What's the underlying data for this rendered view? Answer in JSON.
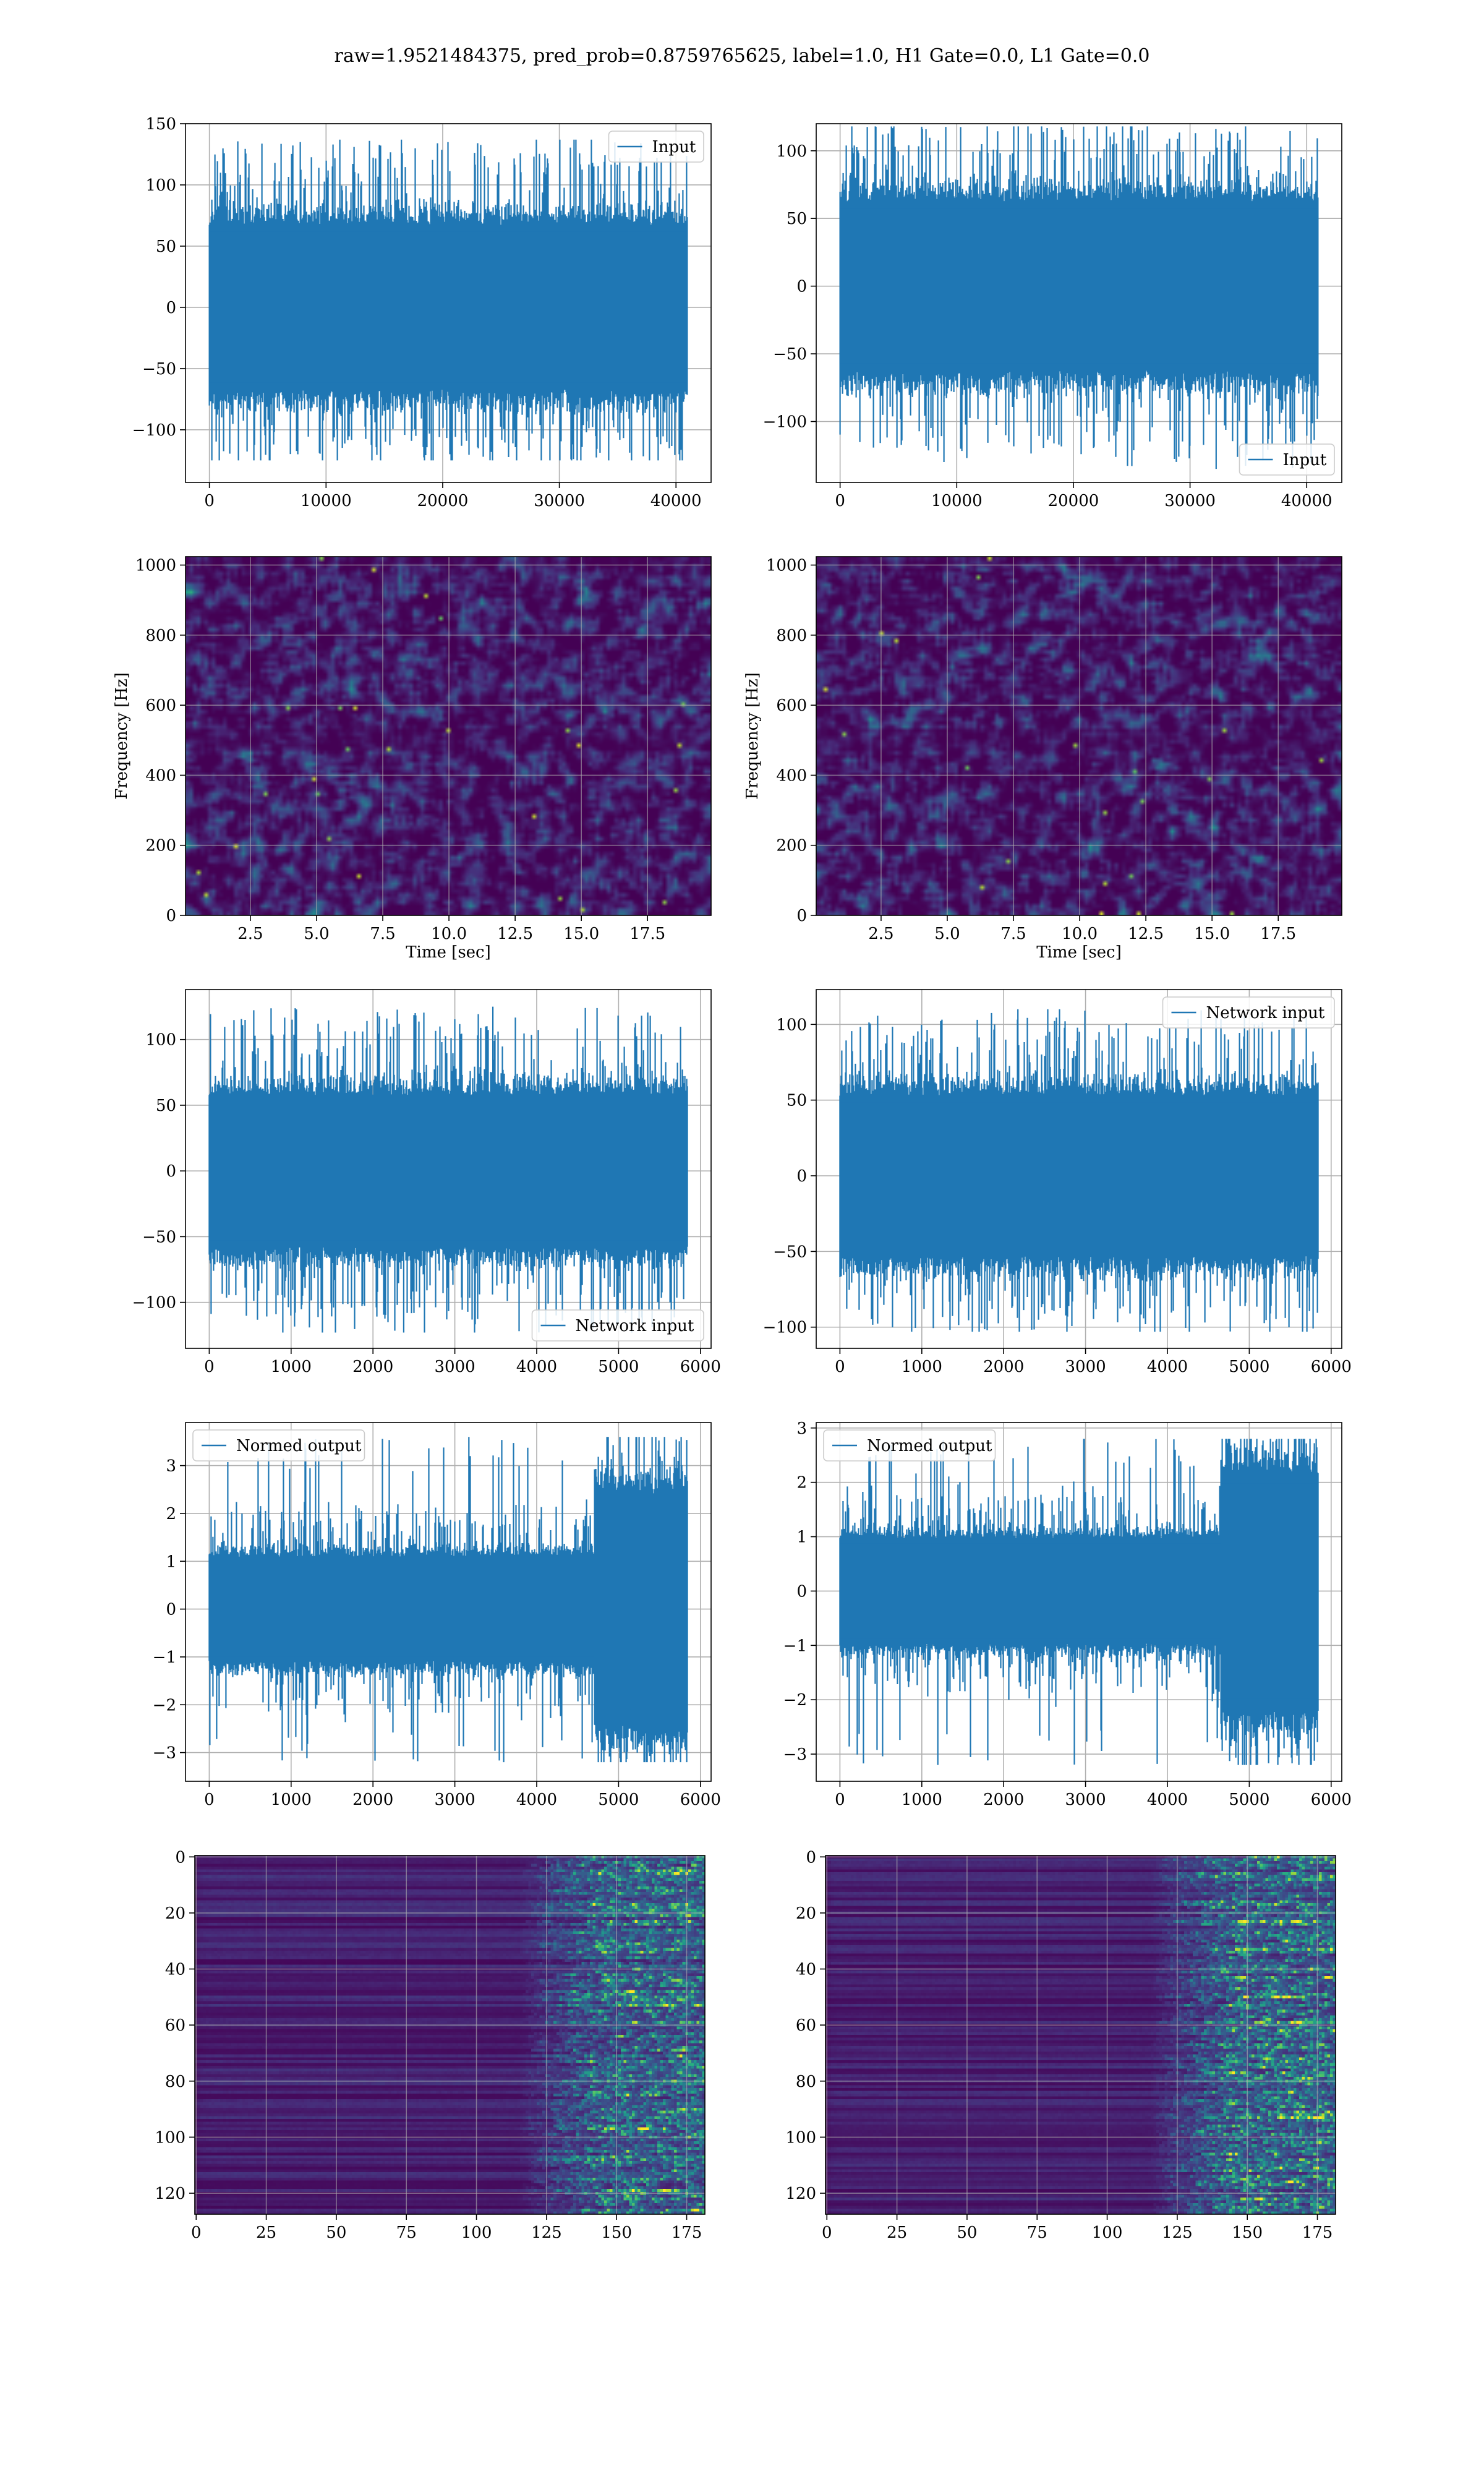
{
  "figure": {
    "title": "raw=1.9521484375, pred_prob=0.8759765625, label=1.0, H1 Gate=0.0, L1 Gate=0.0"
  },
  "colors": {
    "series": "#1f77b4",
    "grid": "#b0b0b0",
    "viridis_low": "#440154",
    "viridis_mid": "#21918c",
    "viridis_high": "#fde725"
  },
  "chart_data": [
    {
      "id": "h1-input",
      "type": "line",
      "row": 0,
      "col": 0,
      "series": [
        {
          "name": "Input",
          "n_samples": 40960,
          "amplitude": 28,
          "peak_min": -125,
          "peak_max": 137
        }
      ],
      "xlim": [
        -2048,
        43008
      ],
      "ylim": [
        -143,
        150
      ],
      "xticks": [
        0,
        10000,
        20000,
        30000,
        40000
      ],
      "xtick_labels": [
        "0",
        "10000",
        "20000",
        "30000",
        "40000"
      ],
      "yticks": [
        -100,
        -50,
        0,
        50,
        100,
        150
      ],
      "ytick_labels": [
        "−100",
        "−50",
        "0",
        "50",
        "100",
        "150"
      ],
      "legend": {
        "label": "Input",
        "loc": "upper right"
      },
      "grid": true
    },
    {
      "id": "l1-input",
      "type": "line",
      "row": 0,
      "col": 1,
      "series": [
        {
          "name": "Input",
          "n_samples": 40960,
          "amplitude": 26,
          "peak_min": -135,
          "peak_max": 118
        }
      ],
      "xlim": [
        -2048,
        43008
      ],
      "ylim": [
        -145,
        120
      ],
      "xticks": [
        0,
        10000,
        20000,
        30000,
        40000
      ],
      "xtick_labels": [
        "0",
        "10000",
        "20000",
        "30000",
        "40000"
      ],
      "yticks": [
        -100,
        -50,
        0,
        50,
        100
      ],
      "ytick_labels": [
        "−100",
        "−50",
        "0",
        "50",
        "100"
      ],
      "legend": {
        "label": "Input",
        "loc": "lower right"
      },
      "grid": true
    },
    {
      "id": "h1-spectrogram",
      "type": "heatmap",
      "row": 1,
      "col": 0,
      "xlim": [
        0.05,
        19.9
      ],
      "ylim": [
        0,
        1024
      ],
      "xticks": [
        2.5,
        5,
        7.5,
        10,
        12.5,
        15,
        17.5
      ],
      "xtick_labels": [
        "2.5",
        "5.0",
        "7.5",
        "10.0",
        "12.5",
        "15.0",
        "17.5"
      ],
      "yticks": [
        0,
        200,
        400,
        600,
        800,
        1000
      ],
      "ytick_labels": [
        "0",
        "200",
        "400",
        "600",
        "800",
        "1000"
      ],
      "xlabel": "Time [sec]",
      "ylabel": "Frequency [Hz]",
      "colormap": "viridis",
      "grid": true
    },
    {
      "id": "l1-spectrogram",
      "type": "heatmap",
      "row": 1,
      "col": 1,
      "xlim": [
        0.05,
        19.9
      ],
      "ylim": [
        0,
        1024
      ],
      "xticks": [
        2.5,
        5,
        7.5,
        10,
        12.5,
        15,
        17.5
      ],
      "xtick_labels": [
        "2.5",
        "5.0",
        "7.5",
        "10.0",
        "12.5",
        "15.0",
        "17.5"
      ],
      "yticks": [
        0,
        200,
        400,
        600,
        800,
        1000
      ],
      "ytick_labels": [
        "0",
        "200",
        "400",
        "600",
        "800",
        "1000"
      ],
      "xlabel": "Time [sec]",
      "ylabel": "Frequency [Hz]",
      "colormap": "viridis",
      "grid": true
    },
    {
      "id": "h1-network-input",
      "type": "line",
      "row": 2,
      "col": 0,
      "series": [
        {
          "name": "Network input",
          "n_samples": 5840,
          "amplitude": 24,
          "peak_min": -123,
          "peak_max": 125
        }
      ],
      "xlim": [
        -290,
        6130
      ],
      "ylim": [
        -135,
        138
      ],
      "xticks": [
        0,
        1000,
        2000,
        3000,
        4000,
        5000,
        6000
      ],
      "xtick_labels": [
        "0",
        "1000",
        "2000",
        "3000",
        "4000",
        "5000",
        "6000"
      ],
      "yticks": [
        -100,
        -50,
        0,
        50,
        100
      ],
      "ytick_labels": [
        "−100",
        "−50",
        "0",
        "50",
        "100"
      ],
      "legend": {
        "label": "Network input",
        "loc": "lower right"
      },
      "grid": true
    },
    {
      "id": "l1-network-input",
      "type": "line",
      "row": 2,
      "col": 1,
      "series": [
        {
          "name": "Network input",
          "n_samples": 5840,
          "amplitude": 22,
          "peak_min": -103,
          "peak_max": 110
        }
      ],
      "xlim": [
        -290,
        6130
      ],
      "ylim": [
        -114,
        123
      ],
      "xticks": [
        0,
        1000,
        2000,
        3000,
        4000,
        5000,
        6000
      ],
      "xtick_labels": [
        "0",
        "1000",
        "2000",
        "3000",
        "4000",
        "5000",
        "6000"
      ],
      "yticks": [
        -100,
        -50,
        0,
        50,
        100
      ],
      "ytick_labels": [
        "−100",
        "−50",
        "0",
        "50",
        "100"
      ],
      "legend": {
        "label": "Network input",
        "loc": "upper right"
      },
      "grid": true
    },
    {
      "id": "h1-normed-output",
      "type": "line",
      "row": 3,
      "col": 0,
      "series": [
        {
          "name": "Normed output",
          "n_samples": 5840,
          "amplitude": 0.45,
          "burst_start": 4700,
          "burst_amplitude": 1.0,
          "peak_min": -3.2,
          "peak_max": 3.6
        }
      ],
      "xlim": [
        -290,
        6130
      ],
      "ylim": [
        -3.6,
        3.9
      ],
      "xticks": [
        0,
        1000,
        2000,
        3000,
        4000,
        5000,
        6000
      ],
      "xtick_labels": [
        "0",
        "1000",
        "2000",
        "3000",
        "4000",
        "5000",
        "6000"
      ],
      "yticks": [
        -3,
        -2,
        -1,
        0,
        1,
        2,
        3
      ],
      "ytick_labels": [
        "−3",
        "−2",
        "−1",
        "0",
        "1",
        "2",
        "3"
      ],
      "legend": {
        "label": "Normed output",
        "loc": "upper left"
      },
      "grid": true
    },
    {
      "id": "l1-normed-output",
      "type": "line",
      "row": 3,
      "col": 1,
      "series": [
        {
          "name": "Normed output",
          "n_samples": 5840,
          "amplitude": 0.4,
          "burst_start": 4650,
          "burst_amplitude": 0.9,
          "peak_min": -3.2,
          "peak_max": 2.8
        }
      ],
      "xlim": [
        -290,
        6130
      ],
      "ylim": [
        -3.5,
        3.1
      ],
      "xticks": [
        0,
        1000,
        2000,
        3000,
        4000,
        5000,
        6000
      ],
      "xtick_labels": [
        "0",
        "1000",
        "2000",
        "3000",
        "4000",
        "5000",
        "6000"
      ],
      "yticks": [
        -3,
        -2,
        -1,
        0,
        1,
        2,
        3
      ],
      "ytick_labels": [
        "−3",
        "−2",
        "−1",
        "0",
        "1",
        "2",
        "3"
      ],
      "legend": {
        "label": "Normed output",
        "loc": "upper left"
      },
      "grid": true
    },
    {
      "id": "h1-feature-map",
      "type": "heatmap",
      "row": 4,
      "col": 0,
      "rows": 128,
      "cols": 182,
      "activity_onset_col": 125,
      "xlim": [
        -0.5,
        181.5
      ],
      "ylim": [
        127.5,
        -0.5
      ],
      "xticks": [
        0,
        25,
        50,
        75,
        100,
        125,
        150,
        175
      ],
      "xtick_labels": [
        "0",
        "25",
        "50",
        "75",
        "100",
        "125",
        "150",
        "175"
      ],
      "yticks": [
        0,
        20,
        40,
        60,
        80,
        100,
        120
      ],
      "ytick_labels": [
        "0",
        "20",
        "40",
        "60",
        "80",
        "100",
        "120"
      ],
      "colormap": "viridis",
      "grid": true
    },
    {
      "id": "l1-feature-map",
      "type": "heatmap",
      "row": 4,
      "col": 1,
      "rows": 128,
      "cols": 182,
      "activity_onset_col": 125,
      "xlim": [
        -0.5,
        181.5
      ],
      "ylim": [
        127.5,
        -0.5
      ],
      "xticks": [
        0,
        25,
        50,
        75,
        100,
        125,
        150,
        175
      ],
      "xtick_labels": [
        "0",
        "25",
        "50",
        "75",
        "100",
        "125",
        "150",
        "175"
      ],
      "yticks": [
        0,
        20,
        40,
        60,
        80,
        100,
        120
      ],
      "ytick_labels": [
        "0",
        "20",
        "40",
        "60",
        "80",
        "100",
        "120"
      ],
      "colormap": "viridis",
      "grid": true
    }
  ]
}
